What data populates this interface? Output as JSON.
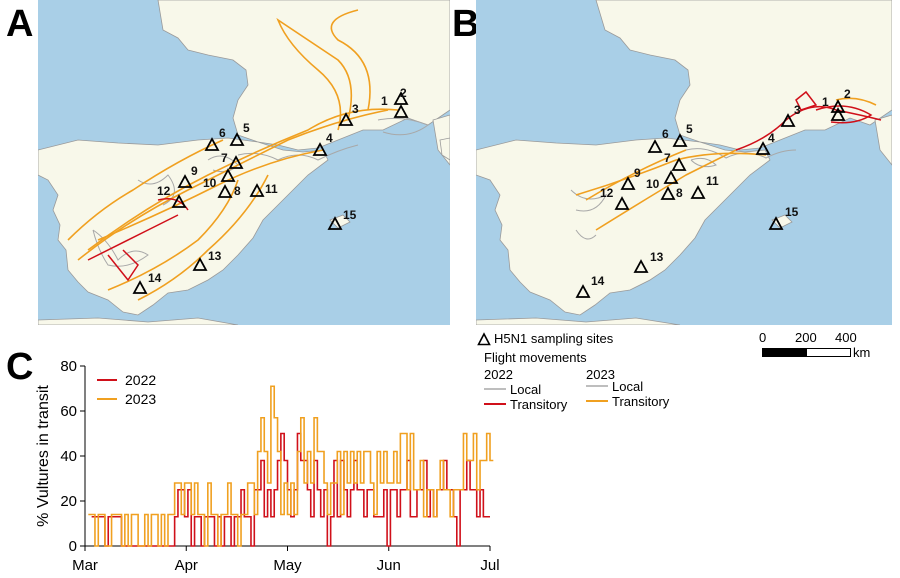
{
  "panels": {
    "a": "A",
    "b": "B",
    "c": "C"
  },
  "colors": {
    "sea": "#a9cfe7",
    "land": "#f8f8ea",
    "border": "#9a9a9a",
    "y2022": "#d0101a",
    "y2023": "#f0a020",
    "local": "#a8a8a8"
  },
  "sites": [
    "1",
    "2",
    "3",
    "4",
    "5",
    "6",
    "7",
    "8",
    "9",
    "10",
    "11",
    "12",
    "13",
    "14",
    "15"
  ],
  "map_legend": {
    "sampling": "H5N1 sampling sites",
    "flight": "Flight movements",
    "year1": "2022",
    "year2": "2023",
    "local": "Local",
    "transitory": "Transitory",
    "scale_ticks": [
      "0",
      "200",
      "400"
    ],
    "scale_unit": "km"
  },
  "chart_data": {
    "type": "line",
    "ylabel": "% Vultures in transit",
    "xlabel": "",
    "ylim": [
      0,
      80
    ],
    "yticks": [
      0,
      20,
      40,
      60,
      80
    ],
    "xticks": [
      "Mar",
      "Apr",
      "May",
      "Jun",
      "Jul"
    ],
    "xrange_days": [
      0,
      122
    ],
    "series": [
      {
        "name": "2022",
        "color": "#d0101a",
        "x": [
          2,
          3,
          4,
          5,
          6,
          7,
          8,
          9,
          10,
          11,
          26,
          27,
          28,
          29,
          30,
          31,
          32,
          33,
          34,
          35,
          36,
          37,
          38,
          39,
          40,
          41,
          42,
          43,
          44,
          45,
          46,
          47,
          48,
          49,
          50,
          51,
          52,
          53,
          54,
          55,
          56,
          57,
          58,
          59,
          60,
          61,
          62,
          63,
          64,
          65,
          66,
          67,
          68,
          69,
          70,
          71,
          72,
          73,
          74,
          75,
          76,
          77,
          78,
          79,
          80,
          81,
          82,
          83,
          84,
          85,
          86,
          87,
          88,
          89,
          90,
          91,
          92,
          93,
          94,
          95,
          96,
          97,
          98,
          99,
          100,
          101,
          102,
          103,
          104,
          105,
          106,
          107,
          108,
          109,
          110,
          111,
          112,
          113,
          114,
          115,
          116,
          117,
          118,
          119,
          120,
          121
        ],
        "y": [
          13,
          13,
          13,
          13,
          0,
          13,
          13,
          13,
          13,
          0,
          0,
          13,
          25,
          25,
          13,
          25,
          0,
          13,
          13,
          0,
          13,
          13,
          13,
          0,
          13,
          0,
          13,
          13,
          0,
          13,
          13,
          25,
          13,
          13,
          0,
          25,
          25,
          38,
          13,
          25,
          13,
          25,
          38,
          50,
          38,
          25,
          13,
          25,
          50,
          38,
          38,
          25,
          13,
          38,
          25,
          13,
          25,
          0,
          13,
          38,
          13,
          38,
          25,
          13,
          25,
          38,
          25,
          25,
          13,
          25,
          25,
          13,
          13,
          13,
          25,
          0,
          25,
          25,
          13,
          25,
          25,
          38,
          13,
          13,
          25,
          25,
          38,
          13,
          25,
          13,
          25,
          25,
          38,
          25,
          25,
          13,
          0,
          25,
          25,
          38,
          25,
          25,
          13,
          25,
          13,
          13
        ]
      },
      {
        "name": "2023",
        "color": "#f0a020",
        "x": [
          1,
          2,
          3,
          4,
          5,
          6,
          7,
          8,
          9,
          10,
          11,
          12,
          13,
          14,
          15,
          16,
          17,
          18,
          19,
          20,
          21,
          22,
          23,
          24,
          25,
          26,
          27,
          28,
          29,
          30,
          31,
          32,
          33,
          34,
          35,
          36,
          37,
          38,
          39,
          40,
          41,
          42,
          43,
          44,
          45,
          46,
          47,
          48,
          49,
          50,
          51,
          52,
          53,
          54,
          55,
          56,
          57,
          58,
          59,
          60,
          61,
          62,
          63,
          64,
          65,
          66,
          67,
          68,
          69,
          70,
          71,
          72,
          73,
          74,
          75,
          76,
          77,
          78,
          79,
          80,
          81,
          82,
          83,
          84,
          85,
          86,
          87,
          88,
          89,
          90,
          91,
          92,
          93,
          94,
          95,
          96,
          97,
          98,
          99,
          100,
          101,
          102,
          103,
          104,
          105,
          106,
          107,
          108,
          109,
          110,
          111,
          112,
          113,
          114,
          115,
          116,
          117,
          118,
          119,
          120,
          121,
          122
        ],
        "y": [
          14,
          14,
          0,
          14,
          14,
          0,
          0,
          14,
          14,
          14,
          0,
          14,
          0,
          14,
          14,
          0,
          0,
          14,
          0,
          14,
          14,
          0,
          14,
          0,
          14,
          14,
          28,
          28,
          14,
          28,
          28,
          14,
          28,
          14,
          14,
          0,
          28,
          14,
          14,
          0,
          14,
          14,
          28,
          14,
          14,
          0,
          14,
          14,
          28,
          28,
          14,
          42,
          57,
          42,
          28,
          71,
          57,
          42,
          14,
          28,
          14,
          28,
          14,
          42,
          57,
          28,
          42,
          28,
          57,
          42,
          42,
          28,
          14,
          28,
          28,
          42,
          14,
          42,
          28,
          42,
          28,
          42,
          28,
          42,
          42,
          28,
          14,
          42,
          28,
          42,
          28,
          28,
          42,
          28,
          50,
          50,
          25,
          50,
          25,
          25,
          38,
          13,
          25,
          25,
          13,
          25,
          38,
          25,
          25,
          13,
          25,
          25,
          25,
          50,
          38,
          38,
          50,
          25,
          38,
          38,
          50,
          38
        ]
      }
    ]
  }
}
